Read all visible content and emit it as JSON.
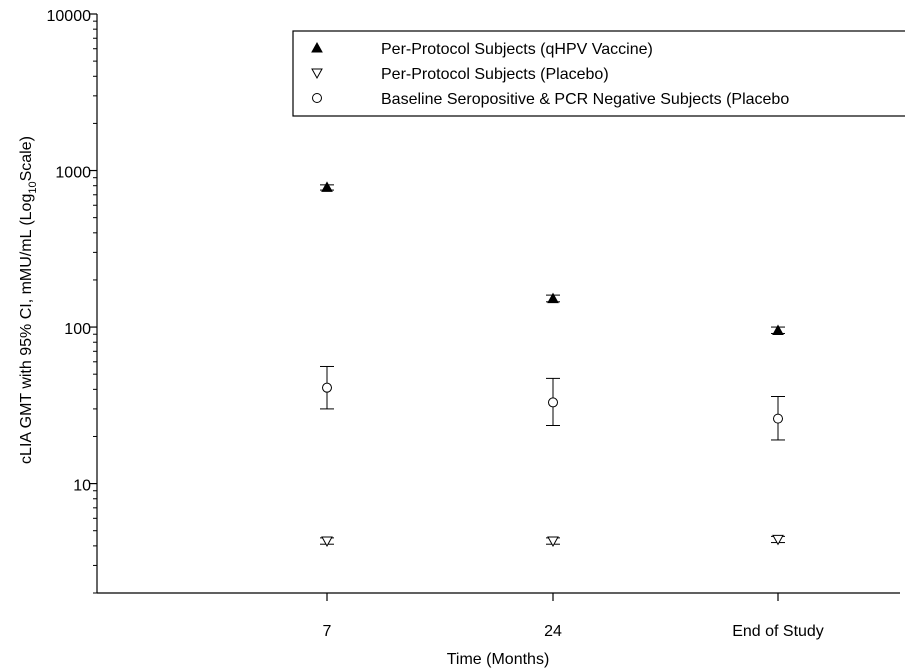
{
  "chart_data": {
    "type": "scatter",
    "title": "",
    "xlabel": "Time (Months)",
    "ylabel_parts": [
      "cLIA GMT with 95% CI, mMU/mL (Log",
      "10",
      "Scale)"
    ],
    "y_scale": "log10",
    "ylim": [
      2,
      10000
    ],
    "y_ticks": [
      10,
      100,
      1000,
      10000
    ],
    "y_tick_labels": [
      "10",
      "100",
      "1000",
      "10000"
    ],
    "categories": [
      "7",
      "24",
      "End of Study"
    ],
    "grid": false,
    "legend_position": "top-right",
    "series": [
      {
        "name": "Per-Protocol Subjects (qHPV Vaccine)",
        "marker": "triangle-up-filled",
        "values": [
          780,
          152,
          95
        ],
        "ci_lower": [
          750,
          145,
          91
        ],
        "ci_upper": [
          810,
          160,
          100
        ]
      },
      {
        "name": "Per-Protocol Subjects (Placebo)",
        "marker": "triangle-down-open",
        "values": [
          4.3,
          4.3,
          4.4
        ],
        "ci_lower": [
          4.1,
          4.1,
          4.2
        ],
        "ci_upper": [
          4.5,
          4.5,
          4.6
        ]
      },
      {
        "name": "Baseline Seropositive & PCR Negative Subjects (Placebo",
        "marker": "circle-open",
        "values": [
          41,
          33,
          26
        ],
        "ci_lower": [
          30,
          23.5,
          19
        ],
        "ci_upper": [
          56,
          47,
          36
        ]
      }
    ]
  }
}
